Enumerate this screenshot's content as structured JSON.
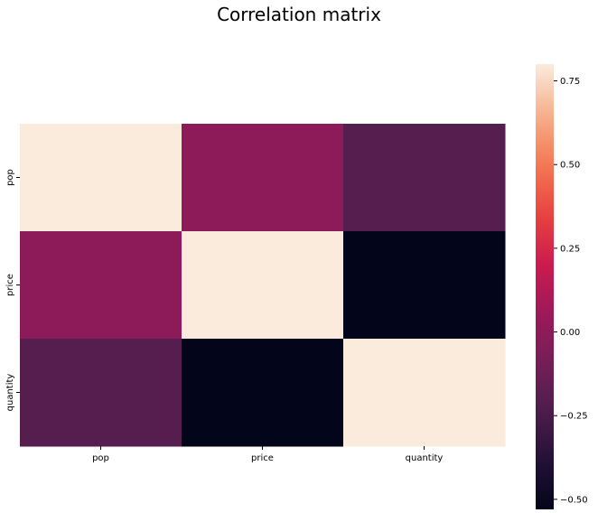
{
  "chart_data": {
    "type": "heatmap",
    "title": "Correlation matrix",
    "xlabel": "",
    "ylabel": "",
    "x_categories": [
      "pop",
      "price",
      "quantity"
    ],
    "y_categories": [
      "pop",
      "price",
      "quantity"
    ],
    "values": [
      [
        0.8,
        0.0,
        -0.2
      ],
      [
        0.0,
        0.8,
        -0.53
      ],
      [
        -0.2,
        -0.53,
        0.8
      ]
    ],
    "colorbar": {
      "range": [
        -0.53,
        0.8
      ],
      "ticks": [
        -0.5,
        -0.25,
        0.0,
        0.25,
        0.5,
        0.75
      ],
      "tick_labels": [
        "−0.50",
        "−0.25",
        "0.00",
        "0.25",
        "0.50",
        "0.75"
      ],
      "colormap": "rocket"
    },
    "grid": false,
    "legend": "colorbar-right"
  }
}
